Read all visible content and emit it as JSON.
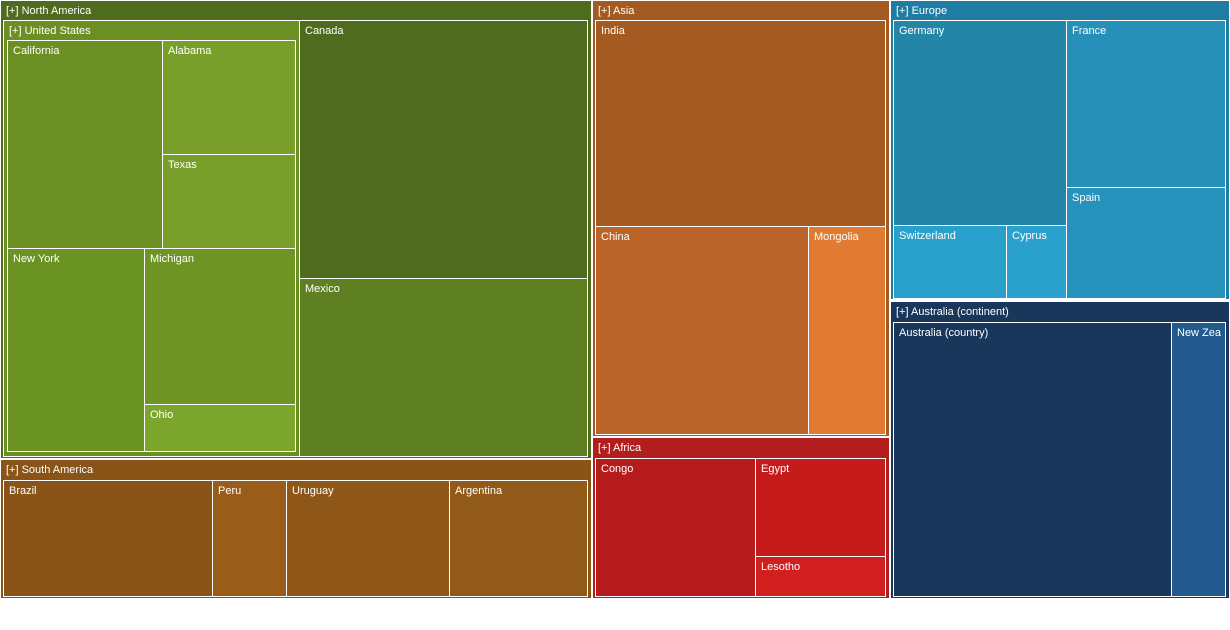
{
  "chart_data": {
    "type": "treemap",
    "colors": {
      "North America": "#4f6b1d",
      "United States": "#6b8f22",
      "California": "#6b8f22",
      "Alabama": "#789f29",
      "Texas": "#789f29",
      "New York": "#6b9324",
      "Michigan": "#6e9524",
      "Ohio": "#7ba52b",
      "Canada": "#4f6b1d",
      "Mexico": "#5f8022",
      "South America": "#8a5318",
      "Brazil": "#8a5318",
      "Peru": "#9a5c19",
      "Uruguay": "#8e5617",
      "Argentina": "#915a18",
      "Asia": "#a55a22",
      "India": "#a55a22",
      "China": "#bb6429",
      "Mongolia": "#e07b31",
      "Africa": "#b21e1e",
      "Congo": "#b71c1c",
      "Egypt": "#c51b1b",
      "Lesotho": "#d11f1f",
      "Europe": "#1f7da3",
      "Germany": "#2386a8",
      "France": "#2690b8",
      "Spain": "#2792bb",
      "Switzerland": "#29a0cc",
      "Cyprus": "#2aa0cc",
      "Australia (continent)": "#18375a",
      "Australia (country)": "#18375a",
      "New Zealand": "#235a8d"
    },
    "groups": [
      {
        "name": "North America",
        "label": "[+] North America",
        "children": [
          {
            "name": "United States",
            "label": "[+] United States",
            "children": [
              {
                "name": "California",
                "label": "California"
              },
              {
                "name": "Alabama",
                "label": "Alabama"
              },
              {
                "name": "Texas",
                "label": "Texas"
              },
              {
                "name": "New York",
                "label": "New York"
              },
              {
                "name": "Michigan",
                "label": "Michigan"
              },
              {
                "name": "Ohio",
                "label": "Ohio"
              }
            ]
          },
          {
            "name": "Canada",
            "label": "Canada"
          },
          {
            "name": "Mexico",
            "label": "Mexico"
          }
        ]
      },
      {
        "name": "South America",
        "label": "[+] South America",
        "children": [
          {
            "name": "Brazil",
            "label": "Brazil"
          },
          {
            "name": "Peru",
            "label": "Peru"
          },
          {
            "name": "Uruguay",
            "label": "Uruguay"
          },
          {
            "name": "Argentina",
            "label": "Argentina"
          }
        ]
      },
      {
        "name": "Asia",
        "label": "[+] Asia",
        "children": [
          {
            "name": "India",
            "label": "India"
          },
          {
            "name": "China",
            "label": "China"
          },
          {
            "name": "Mongolia",
            "label": "Mongolia"
          }
        ]
      },
      {
        "name": "Africa",
        "label": "[+] Africa",
        "children": [
          {
            "name": "Congo",
            "label": "Congo"
          },
          {
            "name": "Egypt",
            "label": "Egypt"
          },
          {
            "name": "Lesotho",
            "label": "Lesotho"
          }
        ]
      },
      {
        "name": "Europe",
        "label": "[+] Europe",
        "children": [
          {
            "name": "Germany",
            "label": "Germany"
          },
          {
            "name": "France",
            "label": "France"
          },
          {
            "name": "Switzerland",
            "label": "Switzerland"
          },
          {
            "name": "Cyprus",
            "label": "Cyprus"
          },
          {
            "name": "Spain",
            "label": "Spain"
          }
        ]
      },
      {
        "name": "Australia (continent)",
        "label": "[+] Australia (continent)",
        "children": [
          {
            "name": "Australia (country)",
            "label": "Australia (country)"
          },
          {
            "name": "New Zealand",
            "label": "New Zea"
          }
        ]
      }
    ]
  }
}
